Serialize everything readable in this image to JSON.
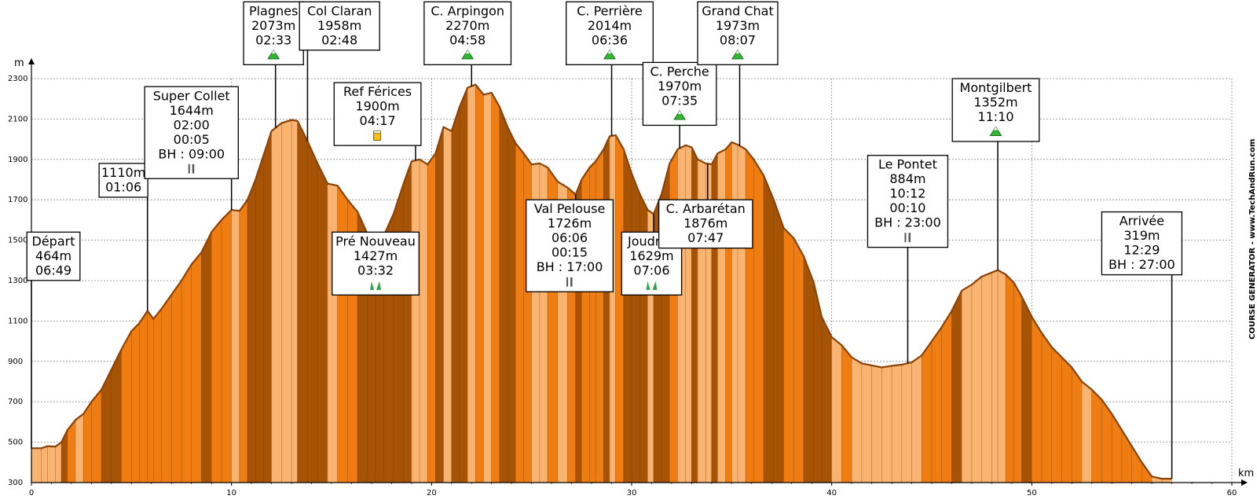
{
  "chart_data": {
    "type": "area",
    "title": "",
    "xlabel": "km",
    "ylabel": "m",
    "xlim": [
      0,
      60
    ],
    "ylim": [
      300,
      2350
    ],
    "x_ticks": [
      0,
      10,
      20,
      30,
      40,
      50,
      60
    ],
    "y_ticks": [
      300,
      500,
      700,
      900,
      1100,
      1300,
      1500,
      1700,
      1900,
      2100,
      2300
    ],
    "grid": true,
    "credit": "COURSE GENERATOR - www.TechAndRun.com",
    "colors": {
      "dark": "#a65305",
      "mid": "#ef7d12",
      "light": "#f8b470",
      "outline": "#8a4208"
    },
    "profile": [
      [
        0,
        470
      ],
      [
        0.5,
        470
      ],
      [
        0.8,
        480
      ],
      [
        1.2,
        478
      ],
      [
        1.5,
        500
      ],
      [
        1.8,
        560
      ],
      [
        2.2,
        610
      ],
      [
        2.6,
        640
      ],
      [
        3.0,
        700
      ],
      [
        3.5,
        760
      ],
      [
        4.0,
        860
      ],
      [
        4.5,
        960
      ],
      [
        5.0,
        1050
      ],
      [
        5.4,
        1090
      ],
      [
        5.8,
        1150
      ],
      [
        6.1,
        1110
      ],
      [
        6.5,
        1160
      ],
      [
        7.0,
        1230
      ],
      [
        7.5,
        1300
      ],
      [
        8.0,
        1380
      ],
      [
        8.5,
        1440
      ],
      [
        9.0,
        1540
      ],
      [
        9.5,
        1600
      ],
      [
        10.0,
        1650
      ],
      [
        10.4,
        1645
      ],
      [
        10.8,
        1700
      ],
      [
        11.2,
        1800
      ],
      [
        11.6,
        1920
      ],
      [
        12.0,
        2040
      ],
      [
        12.5,
        2080
      ],
      [
        13.0,
        2095
      ],
      [
        13.3,
        2090
      ],
      [
        13.8,
        1990
      ],
      [
        14.3,
        1880
      ],
      [
        14.8,
        1780
      ],
      [
        15.3,
        1770
      ],
      [
        15.8,
        1700
      ],
      [
        16.3,
        1640
      ],
      [
        16.8,
        1530
      ],
      [
        17.2,
        1427
      ],
      [
        17.6,
        1520
      ],
      [
        18.1,
        1630
      ],
      [
        18.6,
        1780
      ],
      [
        19.0,
        1890
      ],
      [
        19.4,
        1900
      ],
      [
        19.8,
        1875
      ],
      [
        20.2,
        1930
      ],
      [
        20.6,
        2060
      ],
      [
        21.0,
        2040
      ],
      [
        21.4,
        2160
      ],
      [
        21.8,
        2255
      ],
      [
        22.2,
        2270
      ],
      [
        22.6,
        2220
      ],
      [
        23.0,
        2230
      ],
      [
        23.4,
        2160
      ],
      [
        23.8,
        2060
      ],
      [
        24.2,
        1980
      ],
      [
        24.6,
        1930
      ],
      [
        25.0,
        1875
      ],
      [
        25.4,
        1880
      ],
      [
        25.8,
        1860
      ],
      [
        26.3,
        1790
      ],
      [
        26.8,
        1760
      ],
      [
        27.2,
        1726
      ],
      [
        27.5,
        1800
      ],
      [
        27.9,
        1860
      ],
      [
        28.2,
        1890
      ],
      [
        28.6,
        1950
      ],
      [
        28.9,
        2014
      ],
      [
        29.2,
        2020
      ],
      [
        29.6,
        1950
      ],
      [
        30.0,
        1830
      ],
      [
        30.4,
        1730
      ],
      [
        30.8,
        1650
      ],
      [
        31.1,
        1629
      ],
      [
        31.5,
        1730
      ],
      [
        31.9,
        1880
      ],
      [
        32.3,
        1950
      ],
      [
        32.7,
        1970
      ],
      [
        33.0,
        1960
      ],
      [
        33.3,
        1900
      ],
      [
        33.7,
        1880
      ],
      [
        34.0,
        1876
      ],
      [
        34.3,
        1930
      ],
      [
        34.7,
        1950
      ],
      [
        35.0,
        1985
      ],
      [
        35.3,
        1973
      ],
      [
        35.7,
        1950
      ],
      [
        36.1,
        1900
      ],
      [
        36.6,
        1820
      ],
      [
        37.1,
        1700
      ],
      [
        37.6,
        1560
      ],
      [
        38.1,
        1510
      ],
      [
        38.6,
        1420
      ],
      [
        39.1,
        1290
      ],
      [
        39.5,
        1120
      ],
      [
        40.0,
        1020
      ],
      [
        40.5,
        980
      ],
      [
        41.0,
        920
      ],
      [
        41.5,
        890
      ],
      [
        42.0,
        880
      ],
      [
        42.5,
        870
      ],
      [
        43.0,
        878
      ],
      [
        43.5,
        884
      ],
      [
        44.0,
        895
      ],
      [
        44.5,
        930
      ],
      [
        45.0,
        1000
      ],
      [
        45.5,
        1070
      ],
      [
        46.0,
        1150
      ],
      [
        46.5,
        1250
      ],
      [
        47.0,
        1280
      ],
      [
        47.5,
        1320
      ],
      [
        48.0,
        1340
      ],
      [
        48.3,
        1352
      ],
      [
        48.7,
        1330
      ],
      [
        49.1,
        1290
      ],
      [
        49.5,
        1220
      ],
      [
        50.0,
        1120
      ],
      [
        50.5,
        1040
      ],
      [
        51.0,
        970
      ],
      [
        51.5,
        920
      ],
      [
        52.0,
        870
      ],
      [
        52.5,
        800
      ],
      [
        53.0,
        760
      ],
      [
        53.5,
        710
      ],
      [
        54.0,
        640
      ],
      [
        54.5,
        560
      ],
      [
        55.0,
        480
      ],
      [
        55.5,
        400
      ],
      [
        56.0,
        330
      ],
      [
        56.5,
        319
      ],
      [
        57.0,
        319
      ]
    ],
    "waypoints": [
      {
        "name": "Départ",
        "lines": [
          "Départ",
          "464m",
          "06:49"
        ],
        "km": 0.0,
        "box_km": 1.1,
        "box_top": 1540,
        "icon": ""
      },
      {
        "name": "1110m",
        "lines": [
          "1110m",
          "01:06"
        ],
        "km": 5.8,
        "box_km": 4.6,
        "box_top": 1880,
        "icon": ""
      },
      {
        "name": "Super Collet",
        "lines": [
          "Super Collet",
          "1644m",
          "02:00",
          "00:05",
          "BH : 09:00"
        ],
        "km": 10.0,
        "box_km": 8.0,
        "box_top": 2260,
        "icon": "food"
      },
      {
        "name": "Plagnes",
        "lines": [
          "Plagnes",
          "2073m",
          "02:33"
        ],
        "km": 12.2,
        "box_km": 12.1,
        "box_top": 2680,
        "icon": "summit"
      },
      {
        "name": "Col Claran",
        "lines": [
          "Col Claran",
          "1958m",
          "02:48"
        ],
        "km": 13.8,
        "box_km": 15.4,
        "box_top": 2680,
        "icon": ""
      },
      {
        "name": "Ref Férices",
        "lines": [
          "Ref Férices",
          "1900m",
          "04:17"
        ],
        "km": 19.2,
        "box_km": 17.3,
        "box_top": 2280,
        "icon": "drink"
      },
      {
        "name": "Pré Nouveau",
        "lines": [
          "Pré Nouveau",
          "1427m",
          "03:32"
        ],
        "km": 17.2,
        "box_km": 17.2,
        "box_top": 1540,
        "icon": "grass"
      },
      {
        "name": "C. Arpingon",
        "lines": [
          "C. Arpingon",
          "2270m",
          "04:58"
        ],
        "km": 22.0,
        "box_km": 21.8,
        "box_top": 2680,
        "icon": "summit"
      },
      {
        "name": "Val Pelouse",
        "lines": [
          "Val Pelouse",
          "1726m",
          "06:06",
          "00:15",
          "BH : 17:00"
        ],
        "km": 27.2,
        "box_km": 26.9,
        "box_top": 1700,
        "icon": "food"
      },
      {
        "name": "C. Perrière",
        "lines": [
          "C. Perrière",
          "2014m",
          "06:36"
        ],
        "km": 29.0,
        "box_km": 28.9,
        "box_top": 2680,
        "icon": "summit"
      },
      {
        "name": "Joudron",
        "lines": [
          "Joudron",
          "1629m",
          "07:06"
        ],
        "km": 31.1,
        "box_km": 31.0,
        "box_top": 1540,
        "icon": "grass"
      },
      {
        "name": "C. Perche",
        "lines": [
          "C. Perche",
          "1970m",
          "07:35"
        ],
        "km": 32.4,
        "box_km": 32.4,
        "box_top": 2380,
        "icon": "summit"
      },
      {
        "name": "C. Arbarétan",
        "lines": [
          "C. Arbarétan",
          "1876m",
          "07:47"
        ],
        "km": 33.8,
        "box_km": 33.7,
        "box_top": 1700,
        "icon": ""
      },
      {
        "name": "Grand Chat",
        "lines": [
          "Grand Chat",
          "1973m",
          "08:07"
        ],
        "km": 35.4,
        "box_km": 35.3,
        "box_top": 2680,
        "icon": "summit"
      },
      {
        "name": "Le Pontet",
        "lines": [
          "Le Pontet",
          "884m",
          "10:12",
          "00:10",
          "BH : 23:00"
        ],
        "km": 43.8,
        "box_km": 43.8,
        "box_top": 1920,
        "icon": "food"
      },
      {
        "name": "Montgilbert",
        "lines": [
          "Montgilbert",
          "1352m",
          "11:10"
        ],
        "km": 48.3,
        "box_km": 48.2,
        "box_top": 2300,
        "icon": "summit"
      },
      {
        "name": "Arrivée",
        "lines": [
          "Arrivée",
          "319m",
          "12:29",
          "BH : 27:00"
        ],
        "km": 57.0,
        "box_km": 55.5,
        "box_top": 1640,
        "icon": ""
      }
    ]
  }
}
